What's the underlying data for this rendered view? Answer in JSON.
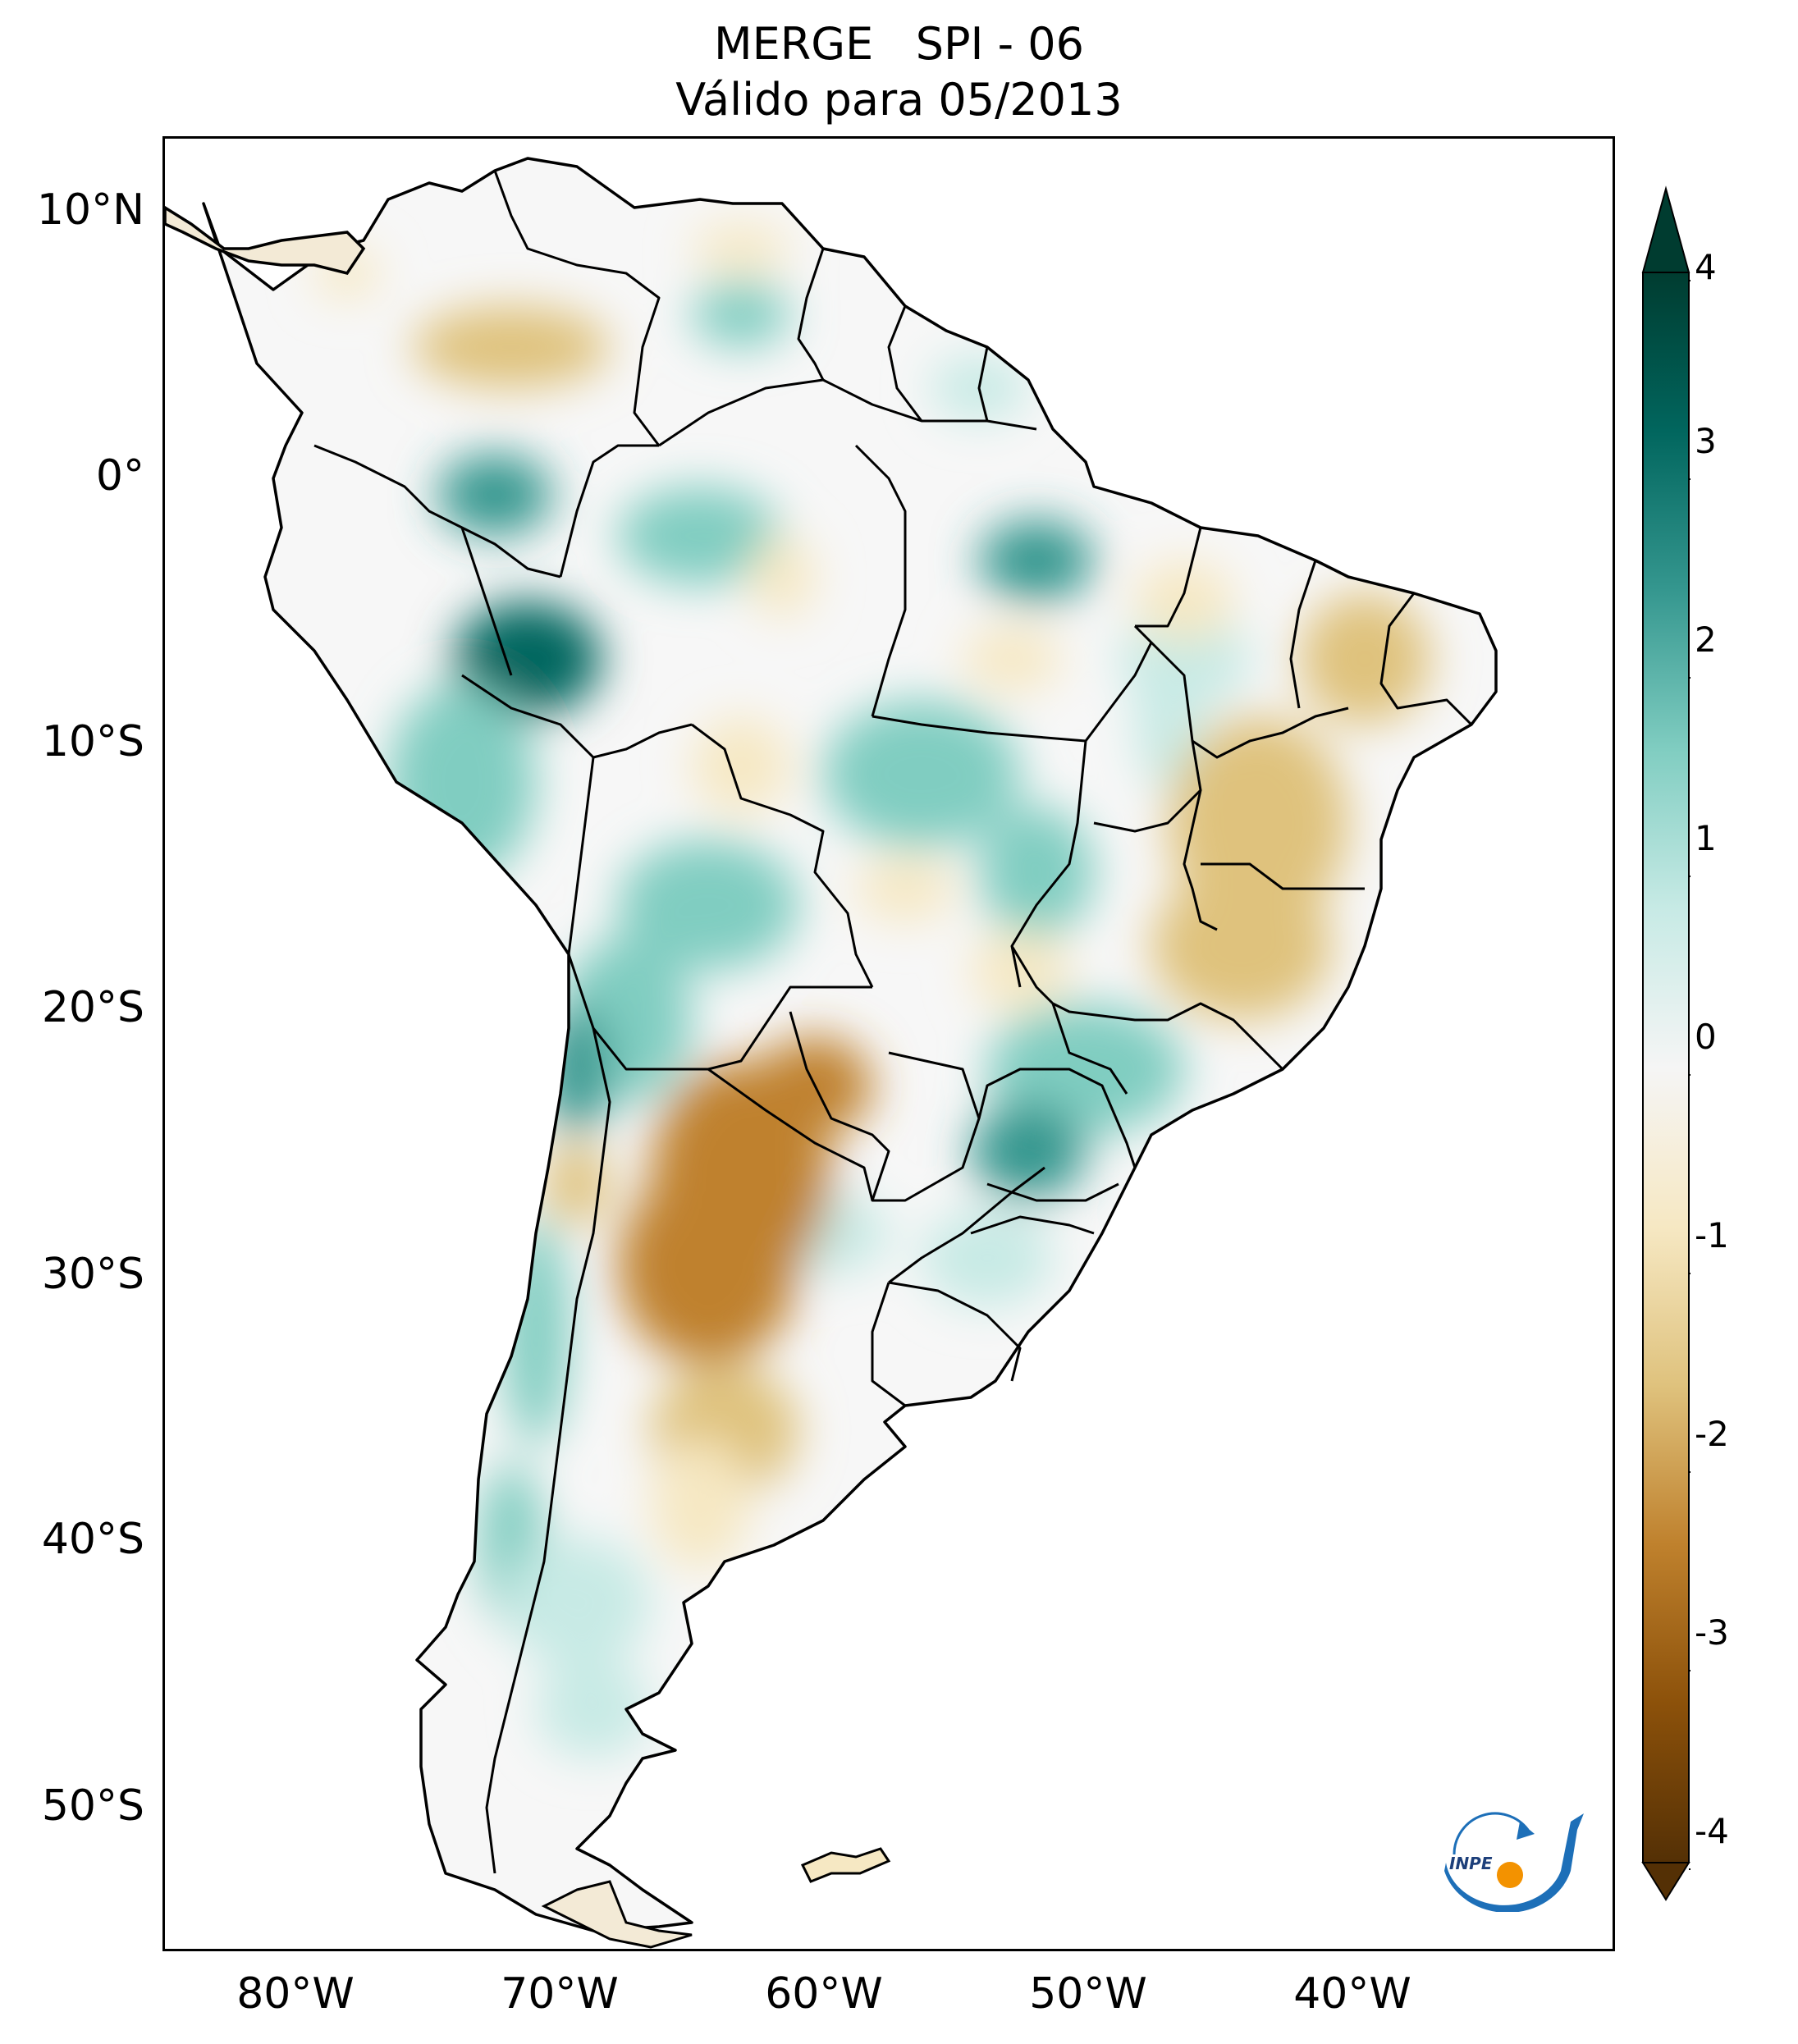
{
  "title": {
    "line1": "MERGE   SPI - 06",
    "line2": "Válido para 05/2013"
  },
  "map": {
    "region": "South America",
    "lat_labels": [
      "10°N",
      "0°",
      "10°S",
      "20°S",
      "30°S",
      "40°S",
      "50°S"
    ],
    "lon_labels": [
      "80°W",
      "70°W",
      "60°W",
      "50°W",
      "40°W"
    ]
  },
  "colorbar": {
    "ticks": [
      "4",
      "3",
      "2",
      "1",
      "0",
      "-1",
      "-2",
      "-3",
      "-4"
    ],
    "colors": [
      "#003c30",
      "#01665e",
      "#35978f",
      "#80cdc1",
      "#c7eae5",
      "#f5f5f5",
      "#f6e8c3",
      "#dfc27d",
      "#bf812d",
      "#8c510a",
      "#543005"
    ]
  },
  "logo": {
    "text": "INPE",
    "colors": [
      "#1d6fb8",
      "#f39200"
    ]
  }
}
